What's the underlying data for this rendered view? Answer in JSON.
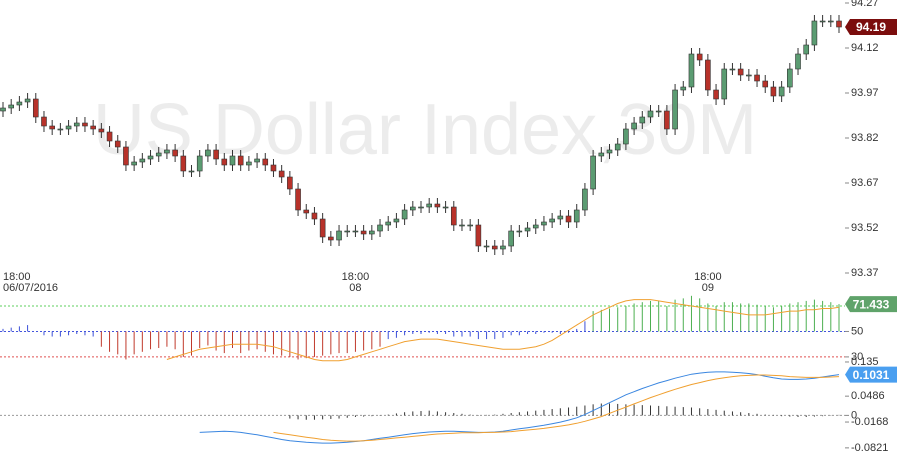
{
  "chart_data": [
    {
      "type": "candlestick",
      "title": "US Dollar Index,30M",
      "open": [
        93.91,
        93.92,
        93.93,
        93.94,
        93.95,
        93.89,
        93.86,
        93.85,
        93.85,
        93.86,
        93.87,
        93.86,
        93.85,
        93.84,
        93.81,
        93.79,
        93.73,
        93.74,
        93.75,
        93.76,
        93.77,
        93.78,
        93.76,
        93.71,
        93.71,
        93.76,
        93.78,
        93.75,
        93.73,
        93.76,
        93.73,
        93.74,
        93.75,
        93.73,
        93.71,
        93.69,
        93.65,
        93.58,
        93.57,
        93.55,
        93.49,
        93.48,
        93.51,
        93.51,
        93.51,
        93.5,
        93.51,
        93.53,
        93.54,
        93.55,
        93.58,
        93.59,
        93.59,
        93.6,
        93.59,
        93.59,
        93.53,
        93.53,
        93.53,
        93.46,
        93.46,
        93.45,
        93.46,
        93.51,
        93.51,
        93.52,
        93.53,
        93.54,
        93.55,
        93.56,
        93.54,
        93.58,
        93.65,
        93.76,
        93.77,
        93.78,
        93.8,
        93.85,
        93.87,
        93.89,
        93.91,
        93.91,
        93.85,
        93.98,
        93.99,
        94.1,
        94.08,
        93.98,
        93.95,
        94.05,
        94.05,
        94.03,
        94.03,
        94.01,
        93.99,
        93.96,
        93.99,
        94.05,
        94.1,
        94.13,
        94.21,
        94.21,
        94.21
      ],
      "high": [
        93.94,
        93.95,
        93.96,
        93.97,
        93.97,
        93.91,
        93.88,
        93.87,
        93.88,
        93.89,
        93.89,
        93.88,
        93.87,
        93.86,
        93.83,
        93.81,
        93.76,
        93.77,
        93.78,
        93.79,
        93.8,
        93.8,
        93.78,
        93.73,
        93.78,
        93.8,
        93.8,
        93.77,
        93.78,
        93.78,
        93.76,
        93.77,
        93.77,
        93.75,
        93.73,
        93.71,
        93.67,
        93.6,
        93.59,
        93.57,
        93.51,
        93.53,
        93.53,
        93.53,
        93.53,
        93.53,
        93.55,
        93.56,
        93.57,
        93.6,
        93.61,
        93.61,
        93.62,
        93.62,
        93.61,
        93.61,
        93.55,
        93.55,
        93.55,
        93.48,
        93.48,
        93.48,
        93.53,
        93.53,
        93.54,
        93.55,
        93.56,
        93.57,
        93.58,
        93.58,
        93.6,
        93.67,
        93.78,
        93.79,
        93.8,
        93.82,
        93.87,
        93.89,
        93.91,
        93.93,
        93.93,
        93.93,
        94.0,
        94.01,
        94.12,
        94.12,
        94.1,
        94.0,
        94.07,
        94.07,
        94.07,
        94.05,
        94.05,
        94.03,
        94.01,
        94.01,
        94.07,
        94.12,
        94.15,
        94.23,
        94.23,
        94.23,
        94.23
      ],
      "low": [
        93.89,
        93.9,
        93.91,
        93.92,
        93.87,
        93.84,
        93.83,
        93.83,
        93.83,
        93.84,
        93.84,
        93.83,
        93.82,
        93.79,
        93.77,
        93.71,
        93.71,
        93.72,
        93.73,
        93.74,
        93.75,
        93.74,
        93.69,
        93.69,
        93.69,
        93.74,
        93.73,
        93.71,
        93.71,
        93.71,
        93.71,
        93.72,
        93.71,
        93.69,
        93.67,
        93.63,
        93.56,
        93.55,
        93.53,
        93.47,
        93.46,
        93.46,
        93.49,
        93.49,
        93.48,
        93.48,
        93.49,
        93.51,
        93.52,
        93.53,
        93.56,
        93.57,
        93.57,
        93.57,
        93.57,
        93.51,
        93.51,
        93.51,
        93.44,
        93.44,
        93.43,
        93.43,
        93.44,
        93.49,
        93.49,
        93.5,
        93.51,
        93.52,
        93.53,
        93.52,
        93.52,
        93.56,
        93.63,
        93.74,
        93.75,
        93.76,
        93.78,
        93.83,
        93.85,
        93.87,
        93.89,
        93.83,
        93.83,
        93.96,
        93.97,
        94.06,
        93.96,
        93.93,
        93.93,
        94.03,
        94.01,
        94.01,
        93.99,
        93.97,
        93.94,
        93.94,
        93.97,
        94.03,
        94.08,
        94.11,
        94.19,
        94.19,
        94.17
      ],
      "close": [
        93.92,
        93.93,
        93.94,
        93.95,
        93.89,
        93.86,
        93.85,
        93.85,
        93.86,
        93.87,
        93.86,
        93.85,
        93.84,
        93.81,
        93.79,
        93.73,
        93.74,
        93.75,
        93.76,
        93.77,
        93.78,
        93.76,
        93.71,
        93.71,
        93.76,
        93.78,
        93.75,
        93.73,
        93.76,
        93.73,
        93.74,
        93.75,
        93.73,
        93.71,
        93.69,
        93.65,
        93.58,
        93.57,
        93.55,
        93.49,
        93.48,
        93.51,
        93.51,
        93.51,
        93.5,
        93.51,
        93.53,
        93.54,
        93.55,
        93.58,
        93.59,
        93.59,
        93.6,
        93.59,
        93.59,
        93.53,
        93.53,
        93.53,
        93.46,
        93.46,
        93.45,
        93.46,
        93.51,
        93.51,
        93.52,
        93.53,
        93.54,
        93.55,
        93.56,
        93.54,
        93.58,
        93.65,
        93.76,
        93.77,
        93.78,
        93.8,
        93.85,
        93.87,
        93.89,
        93.91,
        93.91,
        93.85,
        93.98,
        93.99,
        94.1,
        94.08,
        93.98,
        93.95,
        94.05,
        94.05,
        94.03,
        94.03,
        94.01,
        93.99,
        93.96,
        93.99,
        94.05,
        94.1,
        94.13,
        94.21,
        94.21,
        94.21,
        94.19
      ],
      "up_color": "#5b9c72",
      "down_color": "#b8322a",
      "label_color": "#7b0d0d",
      "ylim": [
        93.33,
        94.28
      ],
      "yticks": [
        94.27,
        94.12,
        93.97,
        93.82,
        93.67,
        93.52,
        93.37
      ],
      "xticks": [
        {
          "value": 0,
          "label": [
            "18:00",
            "06/07/2016"
          ]
        },
        {
          "value": 43,
          "label": [
            "18:00",
            "08"
          ]
        },
        {
          "value": 86,
          "label": [
            "18:00",
            "09"
          ]
        }
      ]
    },
    {
      "type": "oscillator",
      "values": [
        52,
        53,
        54,
        55,
        50,
        47,
        46,
        46,
        47,
        48,
        47,
        46,
        38,
        34,
        32,
        28,
        32,
        34,
        36,
        37,
        38,
        36,
        30,
        31,
        37,
        39,
        35,
        33,
        37,
        33,
        35,
        36,
        34,
        32,
        31,
        30,
        28,
        29,
        30,
        31,
        32,
        33,
        33,
        34,
        35,
        36,
        38,
        44,
        45,
        47,
        48,
        48,
        49,
        48,
        48,
        46,
        46,
        46,
        44,
        44,
        44,
        45,
        47,
        47,
        48,
        48,
        49,
        49,
        48,
        49,
        52,
        58,
        66,
        67,
        68,
        69,
        70,
        72,
        73,
        74,
        74,
        70,
        75,
        76,
        78,
        76,
        72,
        70,
        73,
        73,
        72,
        72,
        71,
        70,
        69,
        70,
        72,
        73,
        74,
        75,
        74,
        73,
        71.433
      ],
      "bar_colors": [
        "#c0392b",
        "#3b4fd8",
        "#4caf50"
      ],
      "label_color": "#5fa36a",
      "series": [
        {
          "color": "#f0a030",
          "values": [
            null,
            null,
            null,
            null,
            null,
            null,
            null,
            null,
            null,
            null,
            null,
            null,
            null,
            null,
            null,
            null,
            null,
            null,
            null,
            null,
            28,
            30,
            32,
            34,
            36,
            37,
            38,
            39,
            40,
            40,
            40,
            40,
            39,
            38,
            36,
            34,
            32,
            30,
            28,
            27,
            27,
            27,
            28,
            30,
            32,
            34,
            36,
            38,
            40,
            42,
            43,
            44,
            44,
            44,
            43,
            42,
            41,
            40,
            39,
            38,
            37,
            36,
            36,
            36,
            37,
            38,
            40,
            43,
            47,
            51,
            55,
            59,
            63,
            66,
            69,
            72,
            74,
            75,
            75,
            75,
            74,
            73,
            72,
            71,
            70,
            69,
            68,
            67,
            66,
            65,
            64,
            63,
            63,
            63,
            64,
            65,
            66,
            66,
            67,
            67,
            68,
            68,
            69
          ]
        }
      ],
      "levels": [
        {
          "value": 70,
          "color": "#5ccf5c"
        },
        {
          "value": 50,
          "color": "#4455dd"
        },
        {
          "value": 30,
          "color": "#e05050"
        }
      ],
      "ylim": [
        26,
        81
      ],
      "yticks": [
        50,
        30
      ]
    },
    {
      "type": "macd",
      "histogram": [
        null,
        null,
        null,
        null,
        null,
        null,
        null,
        null,
        null,
        null,
        null,
        null,
        null,
        null,
        null,
        null,
        null,
        null,
        null,
        null,
        null,
        null,
        null,
        null,
        null,
        null,
        null,
        null,
        null,
        null,
        null,
        null,
        null,
        null,
        null,
        -0.008,
        -0.01,
        -0.011,
        -0.011,
        -0.01,
        -0.009,
        -0.008,
        -0.006,
        -0.004,
        -0.003,
        -0.002,
        -0.001,
        0.002,
        0.005,
        0.008,
        0.01,
        0.011,
        0.012,
        0.01,
        0.008,
        0.006,
        0.004,
        0.002,
        0.001,
        0.0,
        0.002,
        0.004,
        0.006,
        0.008,
        0.01,
        0.012,
        0.014,
        0.016,
        0.018,
        0.02,
        0.022,
        0.025,
        0.028,
        0.03,
        0.03,
        0.029,
        0.028,
        0.027,
        0.026,
        0.025,
        0.024,
        0.023,
        0.022,
        0.021,
        0.02,
        0.018,
        0.016,
        0.014,
        0.012,
        0.01,
        0.008,
        0.006,
        0.004,
        0.002,
        0.0,
        -0.002,
        -0.003,
        -0.004,
        -0.004,
        -0.003,
        -0.002,
        -0.001,
        0.0
      ],
      "histogram_color": "#333333",
      "label_color": "#4a9ff0",
      "series": [
        {
          "color": "#3a86e0",
          "values": [
            null,
            null,
            null,
            null,
            null,
            null,
            null,
            null,
            null,
            null,
            null,
            null,
            null,
            null,
            null,
            null,
            null,
            null,
            null,
            null,
            null,
            null,
            null,
            null,
            -0.043,
            -0.042,
            -0.041,
            -0.04,
            -0.041,
            -0.043,
            -0.046,
            -0.049,
            -0.053,
            -0.057,
            -0.061,
            -0.064,
            -0.066,
            -0.068,
            -0.069,
            -0.07,
            -0.07,
            -0.069,
            -0.068,
            -0.066,
            -0.064,
            -0.061,
            -0.058,
            -0.055,
            -0.052,
            -0.049,
            -0.046,
            -0.044,
            -0.042,
            -0.041,
            -0.04,
            -0.04,
            -0.041,
            -0.042,
            -0.043,
            -0.043,
            -0.042,
            -0.04,
            -0.037,
            -0.034,
            -0.031,
            -0.028,
            -0.025,
            -0.021,
            -0.017,
            -0.012,
            -0.006,
            0.002,
            0.012,
            0.022,
            0.032,
            0.042,
            0.052,
            0.06,
            0.068,
            0.075,
            0.082,
            0.088,
            0.094,
            0.099,
            0.104,
            0.107,
            0.109,
            0.11,
            0.11,
            0.109,
            0.108,
            0.106,
            0.103,
            0.099,
            0.095,
            0.092,
            0.091,
            0.091,
            0.092,
            0.094,
            0.097,
            0.1,
            0.1031
          ]
        },
        {
          "color": "#f0a030",
          "values": [
            null,
            null,
            null,
            null,
            null,
            null,
            null,
            null,
            null,
            null,
            null,
            null,
            null,
            null,
            null,
            null,
            null,
            null,
            null,
            null,
            null,
            null,
            null,
            null,
            null,
            null,
            null,
            null,
            null,
            null,
            null,
            null,
            null,
            -0.043,
            -0.046,
            -0.049,
            -0.052,
            -0.055,
            -0.058,
            -0.061,
            -0.063,
            -0.064,
            -0.065,
            -0.065,
            -0.064,
            -0.063,
            -0.061,
            -0.059,
            -0.057,
            -0.055,
            -0.053,
            -0.051,
            -0.049,
            -0.047,
            -0.046,
            -0.045,
            -0.044,
            -0.044,
            -0.044,
            -0.043,
            -0.043,
            -0.042,
            -0.041,
            -0.039,
            -0.037,
            -0.035,
            -0.033,
            -0.03,
            -0.027,
            -0.024,
            -0.02,
            -0.015,
            -0.009,
            -0.003,
            0.005,
            0.013,
            0.021,
            0.029,
            0.037,
            0.045,
            0.052,
            0.059,
            0.066,
            0.072,
            0.078,
            0.083,
            0.088,
            0.092,
            0.095,
            0.098,
            0.1,
            0.101,
            0.102,
            0.102,
            0.101,
            0.1,
            0.098,
            0.097,
            0.096,
            0.096,
            0.096,
            0.097,
            0.098
          ]
        }
      ],
      "levels": [
        {
          "value": 0,
          "color": "#999999"
        }
      ],
      "ylim": [
        -0.09,
        0.14
      ],
      "yticks": [
        0.135,
        0.0486,
        0,
        -0.0168,
        -0.0821
      ]
    }
  ]
}
